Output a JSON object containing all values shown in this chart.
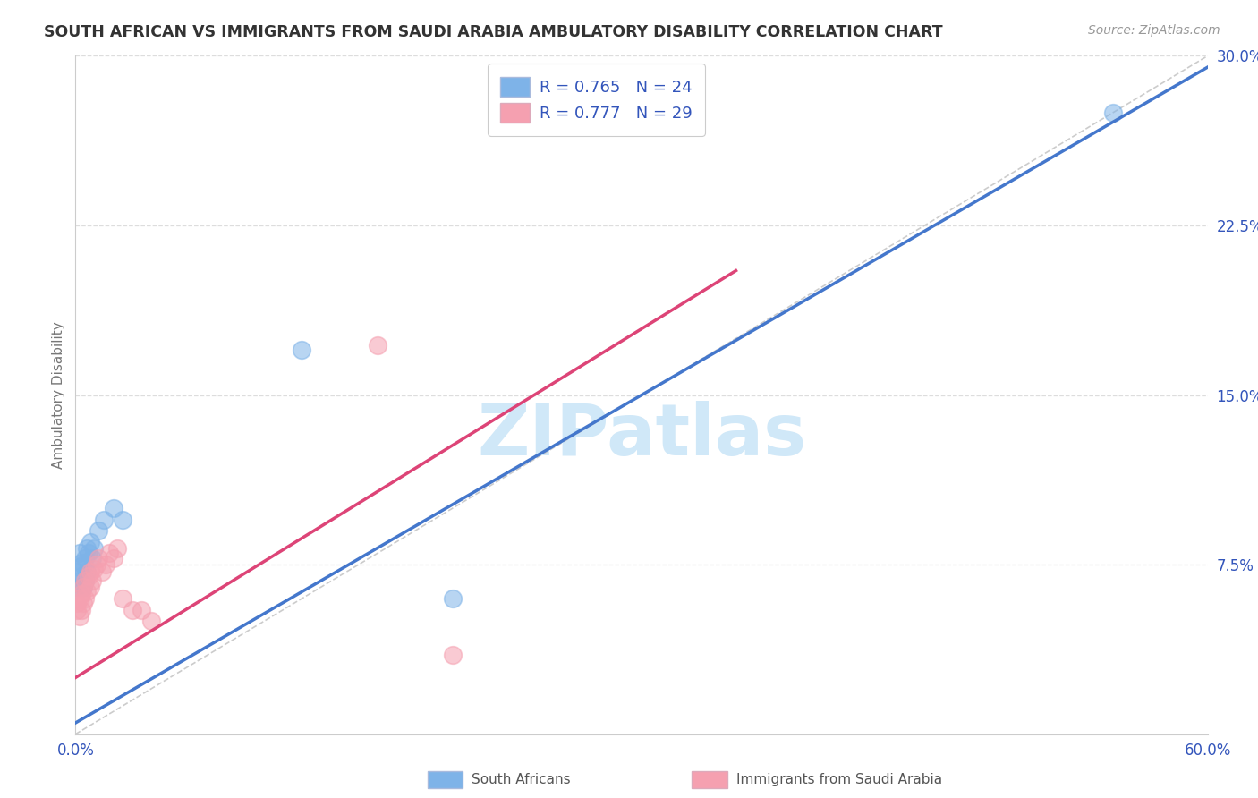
{
  "title": "SOUTH AFRICAN VS IMMIGRANTS FROM SAUDI ARABIA AMBULATORY DISABILITY CORRELATION CHART",
  "source": "Source: ZipAtlas.com",
  "ylabel": "Ambulatory Disability",
  "xlim": [
    0.0,
    0.6
  ],
  "ylim": [
    0.0,
    0.3
  ],
  "xticks": [
    0.0,
    0.1,
    0.2,
    0.3,
    0.4,
    0.5,
    0.6
  ],
  "yticks": [
    0.0,
    0.075,
    0.15,
    0.225,
    0.3
  ],
  "xtick_labels": [
    "0.0%",
    "",
    "",
    "",
    "",
    "",
    "60.0%"
  ],
  "ytick_labels": [
    "",
    "7.5%",
    "15.0%",
    "22.5%",
    "30.0%"
  ],
  "blue_R": "R = 0.765",
  "blue_N": "N = 24",
  "pink_R": "R = 0.777",
  "pink_N": "N = 29",
  "blue_color": "#7EB3E8",
  "pink_color": "#F5A0B0",
  "blue_line_color": "#4477CC",
  "pink_line_color": "#DD4477",
  "diagonal_color": "#CCCCCC",
  "watermark_color": "#D0E8F8",
  "legend_text_color": "#3355BB",
  "title_color": "#333333",
  "source_color": "#999999",
  "legend_label1": "South Africans",
  "legend_label2": "Immigrants from Saudi Arabia",
  "blue_line_x": [
    0.0,
    0.6
  ],
  "blue_line_y": [
    0.005,
    0.295
  ],
  "pink_line_x": [
    0.0,
    0.35
  ],
  "pink_line_y": [
    0.025,
    0.205
  ],
  "blue_scatter_x": [
    0.001,
    0.001,
    0.002,
    0.002,
    0.002,
    0.003,
    0.003,
    0.004,
    0.004,
    0.005,
    0.005,
    0.006,
    0.006,
    0.007,
    0.008,
    0.009,
    0.01,
    0.012,
    0.015,
    0.02,
    0.025,
    0.12,
    0.2,
    0.55
  ],
  "blue_scatter_y": [
    0.065,
    0.072,
    0.068,
    0.074,
    0.08,
    0.07,
    0.076,
    0.065,
    0.075,
    0.068,
    0.078,
    0.072,
    0.082,
    0.08,
    0.085,
    0.078,
    0.082,
    0.09,
    0.095,
    0.1,
    0.095,
    0.17,
    0.06,
    0.275
  ],
  "pink_scatter_x": [
    0.001,
    0.001,
    0.002,
    0.002,
    0.003,
    0.003,
    0.004,
    0.004,
    0.005,
    0.005,
    0.006,
    0.007,
    0.008,
    0.008,
    0.009,
    0.01,
    0.011,
    0.012,
    0.014,
    0.016,
    0.018,
    0.02,
    0.022,
    0.025,
    0.03,
    0.035,
    0.04,
    0.16,
    0.2
  ],
  "pink_scatter_y": [
    0.055,
    0.058,
    0.052,
    0.06,
    0.055,
    0.062,
    0.058,
    0.065,
    0.06,
    0.068,
    0.063,
    0.07,
    0.065,
    0.072,
    0.068,
    0.073,
    0.075,
    0.078,
    0.072,
    0.075,
    0.08,
    0.078,
    0.082,
    0.06,
    0.055,
    0.055,
    0.05,
    0.172,
    0.035
  ],
  "background_color": "#FFFFFF",
  "grid_color": "#DDDDDD"
}
